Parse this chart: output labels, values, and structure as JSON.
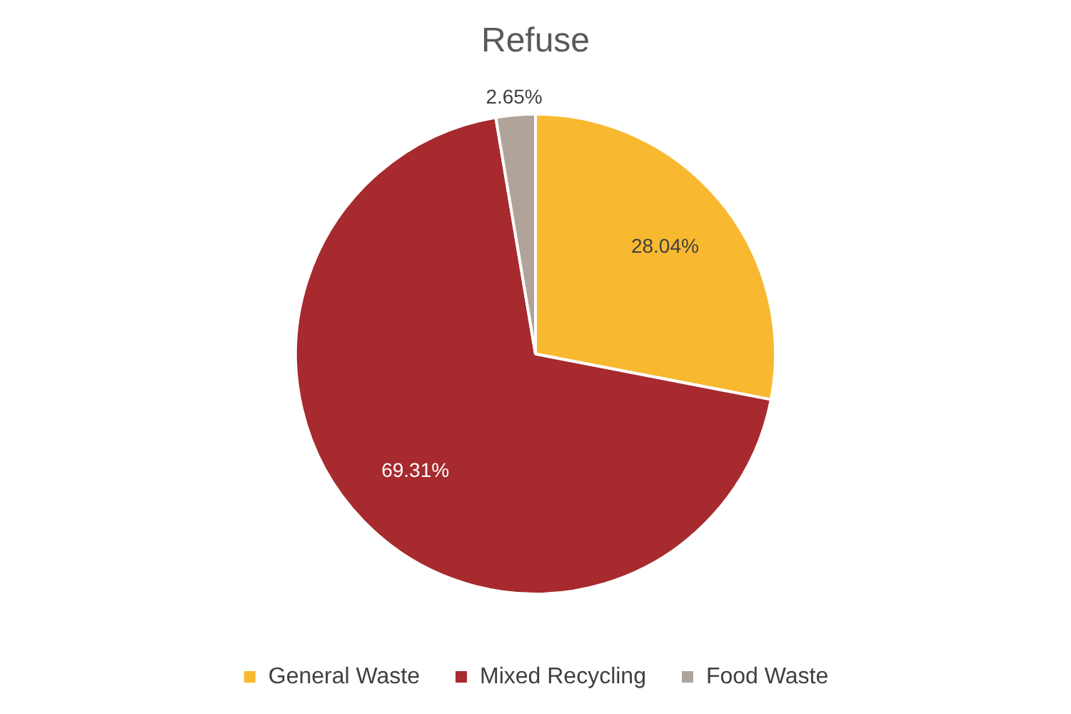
{
  "chart_data": {
    "type": "pie",
    "title": "Refuse",
    "categories": [
      "General Waste",
      "Mixed Recycling",
      "Food Waste"
    ],
    "values": [
      28.04,
      69.31,
      2.65
    ],
    "colors": [
      "#f8b931",
      "#a62a2e",
      "#b0a49a"
    ],
    "value_labels": [
      "28.04%",
      "69.31%",
      "2.65%"
    ],
    "legend": "bottom"
  }
}
